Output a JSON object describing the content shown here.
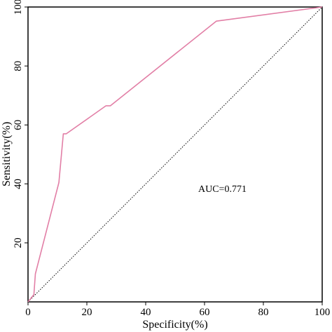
{
  "chart_data": {
    "type": "line",
    "xlabel": "Specificity(%)",
    "ylabel": "Sensitivity(%)",
    "xlim": [
      0,
      100
    ],
    "ylim": [
      0,
      100
    ],
    "xticks": [
      0,
      20,
      40,
      60,
      80,
      100
    ],
    "yticks": [
      20,
      40,
      60,
      80,
      100
    ],
    "grid": false,
    "annotation": "AUC=0.771",
    "series": [
      {
        "color": "#e27fa6",
        "x": [
          0,
          2,
          2.5,
          10.5,
          12,
          13,
          26.5,
          28,
          64,
          100
        ],
        "y": [
          0,
          2.5,
          9.5,
          40.5,
          57,
          57,
          66.5,
          66.5,
          95.2,
          100
        ]
      }
    ],
    "reference_line": {
      "style": "dotted",
      "color": "#000000",
      "x": [
        0,
        100
      ],
      "y": [
        0,
        100
      ]
    }
  }
}
